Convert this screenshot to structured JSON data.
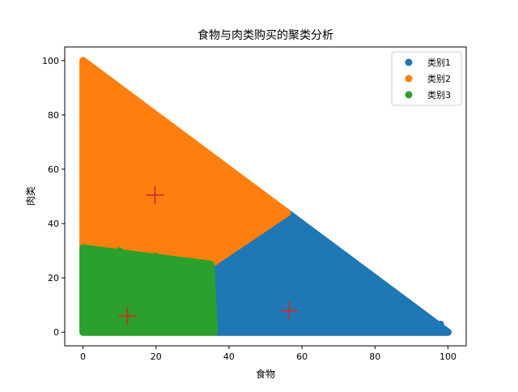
{
  "chart_data": {
    "type": "scatter",
    "title": "食物与肉类购买的聚类分析",
    "xlabel": "食物",
    "ylabel": "肉类",
    "xlim": [
      -5,
      105
    ],
    "ylim": [
      -5,
      105
    ],
    "xticks": [
      0,
      20,
      40,
      60,
      80,
      100
    ],
    "yticks": [
      0,
      20,
      40,
      60,
      80,
      100
    ],
    "grid": false,
    "legend_position": "top-right",
    "series": [
      {
        "name": "类别1",
        "color": "#1f77b4",
        "region": [
          [
            36,
            0
          ],
          [
            100,
            0
          ],
          [
            56,
            44
          ],
          [
            35,
            25
          ]
        ],
        "scatter_points": [
          [
            60,
            38
          ],
          [
            62,
            33
          ],
          [
            64,
            30
          ],
          [
            66,
            26
          ],
          [
            65,
            20
          ],
          [
            68,
            15
          ],
          [
            70,
            12
          ],
          [
            72,
            8
          ],
          [
            74,
            6
          ],
          [
            76,
            5
          ],
          [
            78,
            4
          ],
          [
            80,
            3
          ],
          [
            82,
            2
          ],
          [
            84,
            2
          ],
          [
            86,
            1
          ],
          [
            88,
            1
          ],
          [
            90,
            1
          ],
          [
            92,
            1
          ],
          [
            94,
            1
          ],
          [
            96,
            1
          ],
          [
            98,
            1
          ],
          [
            100,
            0
          ],
          [
            66,
            34
          ],
          [
            68,
            30
          ],
          [
            70,
            27
          ],
          [
            72,
            23
          ],
          [
            74,
            19
          ],
          [
            76,
            17
          ],
          [
            78,
            14
          ],
          [
            80,
            10
          ],
          [
            82,
            9
          ],
          [
            84,
            7
          ],
          [
            86,
            6
          ],
          [
            88,
            4
          ],
          [
            90,
            3
          ],
          [
            92,
            2
          ],
          [
            94,
            2
          ],
          [
            96,
            2
          ],
          [
            97,
            3
          ],
          [
            98,
            3
          ]
        ]
      },
      {
        "name": "类别2",
        "color": "#ff7f0e",
        "region": [
          [
            0,
            100
          ],
          [
            56,
            44
          ],
          [
            35,
            25
          ],
          [
            0,
            31
          ]
        ],
        "scatter_points": [
          [
            1,
            99
          ],
          [
            3,
            97
          ],
          [
            5,
            94
          ],
          [
            2,
            91
          ],
          [
            4,
            88
          ],
          [
            0,
            86
          ],
          [
            1,
            80
          ],
          [
            2,
            75
          ]
        ]
      },
      {
        "name": "类别3",
        "color": "#2ca02c",
        "region": [
          [
            0,
            0
          ],
          [
            36,
            0
          ],
          [
            35,
            25
          ],
          [
            0,
            31
          ]
        ],
        "scatter_points": [
          [
            0,
            0
          ],
          [
            36,
            0
          ],
          [
            35,
            25
          ],
          [
            0,
            31
          ],
          [
            10,
            30
          ],
          [
            20,
            28
          ],
          [
            30,
            26
          ]
        ]
      }
    ],
    "centroids": {
      "color": "#d62728",
      "points": [
        [
          56.5,
          8
        ],
        [
          19.7,
          50.5
        ],
        [
          12.2,
          6
        ]
      ]
    }
  }
}
